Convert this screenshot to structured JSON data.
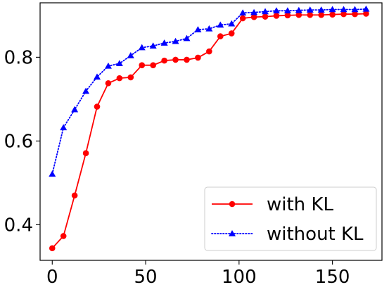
{
  "chart_data": {
    "type": "line",
    "title": "",
    "xlabel": "",
    "ylabel": "",
    "xlim": [
      -6.5,
      176.5
    ],
    "ylim": [
      0.315,
      0.93
    ],
    "x_ticks": [
      0,
      50,
      100,
      150
    ],
    "y_ticks": [
      0.4,
      0.6,
      0.8
    ],
    "x_tick_labels": [
      "0",
      "50",
      "100",
      "150"
    ],
    "y_tick_labels": [
      "0.4",
      "0.6",
      "0.8"
    ],
    "grid": false,
    "legend_position": "lower-right",
    "x": [
      0,
      6,
      12,
      18,
      24,
      30,
      36,
      42,
      48,
      54,
      60,
      66,
      72,
      78,
      84,
      90,
      96,
      102,
      108,
      114,
      120,
      126,
      132,
      138,
      144,
      150,
      156,
      162,
      168
    ],
    "series": [
      {
        "name": "with KL",
        "color": "#ff0000",
        "line_style": "solid",
        "marker": "circle",
        "values": [
          0.344,
          0.373,
          0.47,
          0.571,
          0.682,
          0.738,
          0.75,
          0.752,
          0.781,
          0.781,
          0.792,
          0.794,
          0.794,
          0.799,
          0.814,
          0.85,
          0.857,
          0.893,
          0.896,
          0.897,
          0.899,
          0.9,
          0.901,
          0.901,
          0.901,
          0.902,
          0.903,
          0.903,
          0.904
        ]
      },
      {
        "name": "without KL",
        "color": "#0000ff",
        "line_style": "dotted",
        "marker": "triangle",
        "values": [
          0.521,
          0.632,
          0.675,
          0.719,
          0.753,
          0.779,
          0.785,
          0.804,
          0.823,
          0.827,
          0.834,
          0.838,
          0.845,
          0.866,
          0.868,
          0.877,
          0.88,
          0.906,
          0.907,
          0.909,
          0.911,
          0.911,
          0.912,
          0.913,
          0.913,
          0.914,
          0.914,
          0.914,
          0.915
        ]
      }
    ]
  }
}
